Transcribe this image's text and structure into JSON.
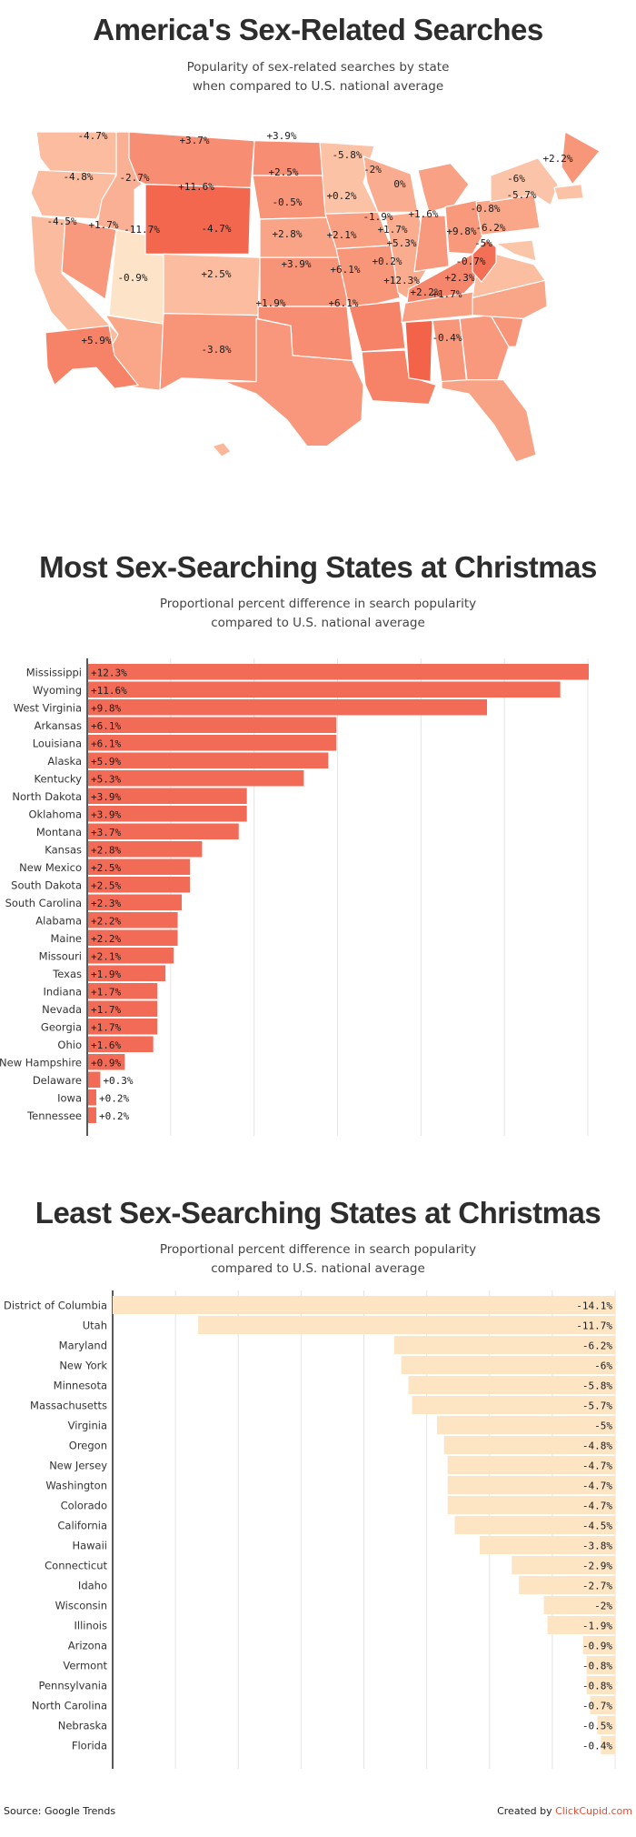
{
  "chart_data": [
    {
      "type": "choropleth-map",
      "title": "America's Sex-Related Searches",
      "subtitle_line1": "Popularity of sex-related searches by state",
      "subtitle_line2": "when compared to U.S. national average",
      "unit": "%",
      "colors": {
        "low": "#fde4c8",
        "mid": "#f9a184",
        "high": "#f2634a"
      },
      "states": [
        {
          "label": "WA",
          "value": -4.7,
          "text": "-4.7%"
        },
        {
          "label": "OR",
          "value": -4.8,
          "text": "-4.8%"
        },
        {
          "label": "CA",
          "value": -4.5,
          "text": "-4.5%"
        },
        {
          "label": "ID",
          "value": -2.7,
          "text": "-2.7%"
        },
        {
          "label": "NV",
          "value": 1.7,
          "text": "+1.7%"
        },
        {
          "label": "UT",
          "value": -11.7,
          "text": "-11.7%"
        },
        {
          "label": "AZ",
          "value": -0.9,
          "text": "-0.9%"
        },
        {
          "label": "MT",
          "value": 3.7,
          "text": "+3.7%"
        },
        {
          "label": "WY",
          "value": 11.6,
          "text": "+11.6%"
        },
        {
          "label": "CO",
          "value": -4.7,
          "text": "-4.7%"
        },
        {
          "label": "NM",
          "value": 2.5,
          "text": "+2.5%"
        },
        {
          "label": "ND",
          "value": 3.9,
          "text": "+3.9%"
        },
        {
          "label": "SD",
          "value": 2.5,
          "text": "+2.5%"
        },
        {
          "label": "NE",
          "value": -0.5,
          "text": "-0.5%"
        },
        {
          "label": "KS",
          "value": 2.8,
          "text": "+2.8%"
        },
        {
          "label": "OK",
          "value": 3.9,
          "text": "+3.9%"
        },
        {
          "label": "TX",
          "value": 1.9,
          "text": "+1.9%"
        },
        {
          "label": "MN",
          "value": -5.8,
          "text": "-5.8%"
        },
        {
          "label": "IA",
          "value": 0.2,
          "text": "+0.2%"
        },
        {
          "label": "MO",
          "value": 2.1,
          "text": "+2.1%"
        },
        {
          "label": "AR",
          "value": 6.1,
          "text": "+6.1%"
        },
        {
          "label": "LA",
          "value": 6.1,
          "text": "+6.1%"
        },
        {
          "label": "WI",
          "value": -2,
          "text": "-2%"
        },
        {
          "label": "IL",
          "value": -1.9,
          "text": "-1.9%"
        },
        {
          "label": "MI",
          "value": 0,
          "text": "0%"
        },
        {
          "label": "IN",
          "value": 1.7,
          "text": "+1.7%"
        },
        {
          "label": "OH",
          "value": 1.6,
          "text": "+1.6%"
        },
        {
          "label": "KY",
          "value": 5.3,
          "text": "+5.3%"
        },
        {
          "label": "TN",
          "value": 0.2,
          "text": "+0.2%"
        },
        {
          "label": "MS",
          "value": 12.3,
          "text": "+12.3%"
        },
        {
          "label": "AL",
          "value": 2.2,
          "text": "+2.2%"
        },
        {
          "label": "GA",
          "value": 1.7,
          "text": "+1.7%"
        },
        {
          "label": "FL",
          "value": -0.4,
          "text": "-0.4%"
        },
        {
          "label": "SC",
          "value": 2.3,
          "text": "+2.3%"
        },
        {
          "label": "NC",
          "value": -0.7,
          "text": "-0.7%"
        },
        {
          "label": "VA",
          "value": -5,
          "text": "-5%"
        },
        {
          "label": "WV",
          "value": 9.8,
          "text": "+9.8%"
        },
        {
          "label": "MD",
          "value": -6.2,
          "text": "-6.2%"
        },
        {
          "label": "PA",
          "value": -0.8,
          "text": "-0.8%"
        },
        {
          "label": "NY",
          "value": -6,
          "text": "-6%"
        },
        {
          "label": "MA",
          "value": -5.7,
          "text": "-5.7%"
        },
        {
          "label": "ME",
          "value": 2.2,
          "text": "+2.2%"
        },
        {
          "label": "AK",
          "value": 5.9,
          "text": "+5.9%"
        },
        {
          "label": "HI",
          "value": -3.8,
          "text": "-3.8%"
        }
      ]
    },
    {
      "type": "bar",
      "orientation": "horizontal",
      "title": "Most Sex-Searching States at Christmas",
      "subtitle_line1": "Proportional percent difference in search popularity",
      "subtitle_line2": "compared to U.S. national average",
      "xlim": [
        0,
        12.3
      ],
      "grid": true,
      "bar_color": "#f26b57",
      "categories": [
        "Mississippi",
        "Wyoming",
        "West Virginia",
        "Arkansas",
        "Louisiana",
        "Alaska",
        "Kentucky",
        "North Dakota",
        "Oklahoma",
        "Montana",
        "Kansas",
        "New Mexico",
        "South Dakota",
        "South Carolina",
        "Alabama",
        "Maine",
        "Missouri",
        "Texas",
        "Indiana",
        "Nevada",
        "Georgia",
        "Ohio",
        "New Hampshire",
        "Delaware",
        "Iowa",
        "Tennessee"
      ],
      "values": [
        12.3,
        11.6,
        9.8,
        6.1,
        6.1,
        5.9,
        5.3,
        3.9,
        3.9,
        3.7,
        2.8,
        2.5,
        2.5,
        2.3,
        2.2,
        2.2,
        2.1,
        1.9,
        1.7,
        1.7,
        1.7,
        1.6,
        0.9,
        0.3,
        0.2,
        0.2
      ],
      "labels": [
        "+12.3%",
        "+11.6%",
        "+9.8%",
        "+6.1%",
        "+6.1%",
        "+5.9%",
        "+5.3%",
        "+3.9%",
        "+3.9%",
        "+3.7%",
        "+2.8%",
        "+2.5%",
        "+2.5%",
        "+2.3%",
        "+2.2%",
        "+2.2%",
        "+2.1%",
        "+1.9%",
        "+1.7%",
        "+1.7%",
        "+1.7%",
        "+1.6%",
        "+0.9%",
        "+0.3%",
        "+0.2%",
        "+0.2%"
      ]
    },
    {
      "type": "bar",
      "orientation": "horizontal",
      "title": "Least Sex-Searching States at Christmas",
      "subtitle_line1": "Proportional percent difference in search popularity",
      "subtitle_line2": "compared to U.S. national average",
      "xlim": [
        -14.1,
        0
      ],
      "grid": true,
      "bar_color": "#fde5c4",
      "categories": [
        "District of Columbia",
        "Utah",
        "Maryland",
        "New York",
        "Minnesota",
        "Massachusetts",
        "Virginia",
        "Oregon",
        "New Jersey",
        "Washington",
        "Colorado",
        "California",
        "Hawaii",
        "Connecticut",
        "Idaho",
        "Wisconsin",
        "Illinois",
        "Arizona",
        "Vermont",
        "Pennsylvania",
        "North Carolina",
        "Nebraska",
        "Florida"
      ],
      "values": [
        -14.1,
        -11.7,
        -6.2,
        -6,
        -5.8,
        -5.7,
        -5,
        -4.8,
        -4.7,
        -4.7,
        -4.7,
        -4.5,
        -3.8,
        -2.9,
        -2.7,
        -2,
        -1.9,
        -0.9,
        -0.8,
        -0.8,
        -0.7,
        -0.5,
        -0.4
      ],
      "labels": [
        "-14.1%",
        "-11.7%",
        "-6.2%",
        "-6%",
        "-5.8%",
        "-5.7%",
        "-5%",
        "-4.8%",
        "-4.7%",
        "-4.7%",
        "-4.7%",
        "-4.5%",
        "-3.8%",
        "-2.9%",
        "-2.7%",
        "-2%",
        "-1.9%",
        "-0.9%",
        "-0.8%",
        "-0.8%",
        "-0.7%",
        "-0.5%",
        "-0.4%"
      ]
    }
  ],
  "footer": {
    "source": "Source: Google Trends",
    "created_by": "Created by",
    "brand": "ClickCupid.com"
  }
}
